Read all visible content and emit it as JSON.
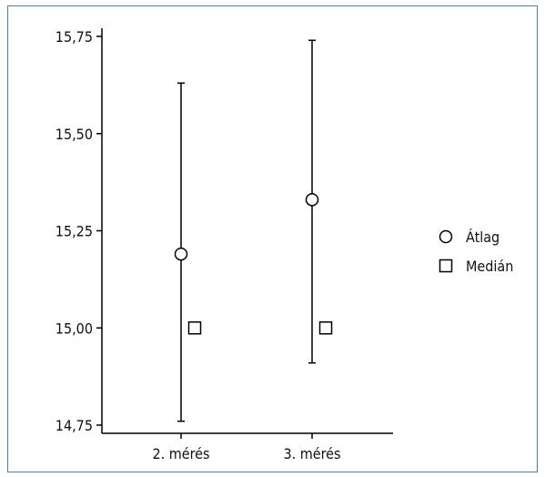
{
  "chart_data": {
    "type": "scatter",
    "title": "",
    "xlabel": "",
    "ylabel": "",
    "categories": [
      "2. mérés",
      "3. mérés"
    ],
    "ylim": [
      14.75,
      15.75
    ],
    "yticks": [
      14.75,
      15.0,
      15.25,
      15.5,
      15.75
    ],
    "ytick_labels": [
      "14,75",
      "15,00",
      "15,25",
      "15,50",
      "15,75"
    ],
    "series": [
      {
        "name": "Átlag",
        "marker": "circle",
        "values": [
          15.19,
          15.33
        ]
      },
      {
        "name": "Medián",
        "marker": "square",
        "values": [
          15.0,
          15.0
        ]
      }
    ],
    "error_bars": [
      {
        "category": "2. mérés",
        "low": 14.76,
        "high": 15.63
      },
      {
        "category": "3. mérés",
        "low": 14.91,
        "high": 15.74
      }
    ],
    "grid": false,
    "legend_position": "right",
    "colors": {
      "frame": "#5a7f96",
      "marks": "#000000"
    }
  }
}
